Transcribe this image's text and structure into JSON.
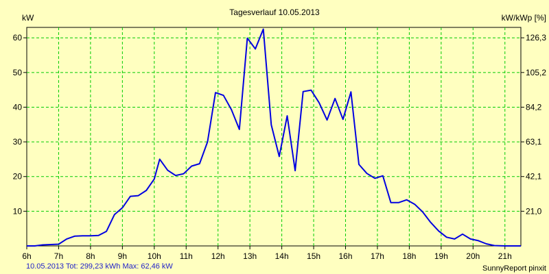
{
  "chart_data": {
    "type": "line",
    "title": "Tagesverlauf 10.05.2013",
    "ylabel_left": "kW",
    "ylabel_right": "kW/kWp [%]",
    "xlim": [
      6,
      21.5
    ],
    "ylim": [
      0,
      63
    ],
    "x_ticks": [
      6,
      7,
      8,
      9,
      10,
      11,
      12,
      13,
      14,
      15,
      16,
      17,
      18,
      19,
      20,
      21
    ],
    "x_tick_labels": [
      "6h",
      "7h",
      "8h",
      "9h",
      "10h",
      "11h",
      "12h",
      "13h",
      "14h",
      "15h",
      "16h",
      "17h",
      "18h",
      "19h",
      "20h",
      "21h"
    ],
    "y_ticks_left": [
      10,
      20,
      30,
      40,
      50,
      60
    ],
    "y_tick_labels_left": [
      "10",
      "20",
      "30",
      "40",
      "50",
      "60"
    ],
    "y_ticks_right_pos": [
      10,
      20,
      30,
      40,
      50,
      60
    ],
    "y_tick_labels_right": [
      "21,0",
      "42,1",
      "63,1",
      "84,2",
      "105,2",
      "126,3"
    ],
    "grid": true,
    "colors": {
      "background": "#ffffc0",
      "grid": "#00cc00",
      "line": "#0000e0",
      "footer_text": "#1e1ec8"
    },
    "series": [
      {
        "values": [
          [
            6.0,
            0.0
          ],
          [
            6.25,
            0.0
          ],
          [
            6.5,
            0.3
          ],
          [
            6.75,
            0.4
          ],
          [
            7.0,
            0.5
          ],
          [
            7.25,
            2.0
          ],
          [
            7.5,
            2.8
          ],
          [
            7.75,
            2.9
          ],
          [
            8.0,
            2.9
          ],
          [
            8.25,
            3.0
          ],
          [
            8.5,
            4.2
          ],
          [
            8.75,
            9.0
          ],
          [
            9.0,
            11.0
          ],
          [
            9.25,
            14.3
          ],
          [
            9.5,
            14.5
          ],
          [
            9.75,
            16.0
          ],
          [
            10.0,
            19.3
          ],
          [
            10.17,
            25.0
          ],
          [
            10.42,
            21.8
          ],
          [
            10.67,
            20.3
          ],
          [
            10.92,
            20.8
          ],
          [
            11.17,
            23.0
          ],
          [
            11.42,
            23.7
          ],
          [
            11.67,
            30.0
          ],
          [
            11.92,
            44.2
          ],
          [
            12.17,
            43.4
          ],
          [
            12.42,
            39.3
          ],
          [
            12.67,
            33.6
          ],
          [
            12.92,
            59.9
          ],
          [
            13.17,
            56.8
          ],
          [
            13.42,
            62.5
          ],
          [
            13.67,
            34.9
          ],
          [
            13.92,
            25.8
          ],
          [
            14.17,
            37.5
          ],
          [
            14.42,
            21.7
          ],
          [
            14.67,
            44.5
          ],
          [
            14.92,
            44.9
          ],
          [
            15.17,
            41.3
          ],
          [
            15.42,
            36.3
          ],
          [
            15.67,
            42.5
          ],
          [
            15.92,
            36.5
          ],
          [
            16.17,
            44.4
          ],
          [
            16.42,
            23.5
          ],
          [
            16.67,
            20.9
          ],
          [
            16.92,
            19.5
          ],
          [
            17.17,
            20.2
          ],
          [
            17.42,
            12.5
          ],
          [
            17.67,
            12.5
          ],
          [
            17.92,
            13.3
          ],
          [
            18.17,
            12.0
          ],
          [
            18.42,
            9.8
          ],
          [
            18.67,
            6.8
          ],
          [
            18.92,
            4.3
          ],
          [
            19.17,
            2.5
          ],
          [
            19.42,
            2.0
          ],
          [
            19.67,
            3.4
          ],
          [
            19.92,
            2.0
          ],
          [
            20.17,
            1.5
          ],
          [
            20.42,
            0.6
          ],
          [
            20.67,
            0.1
          ],
          [
            21.0,
            0.0
          ],
          [
            21.25,
            0.0
          ],
          [
            21.5,
            0.0
          ]
        ]
      }
    ]
  },
  "footer": {
    "summary": "10.05.2013 Tot: 299,23 kWh Max: 62,46 kW",
    "brand": "SunnyReport pinxit"
  }
}
